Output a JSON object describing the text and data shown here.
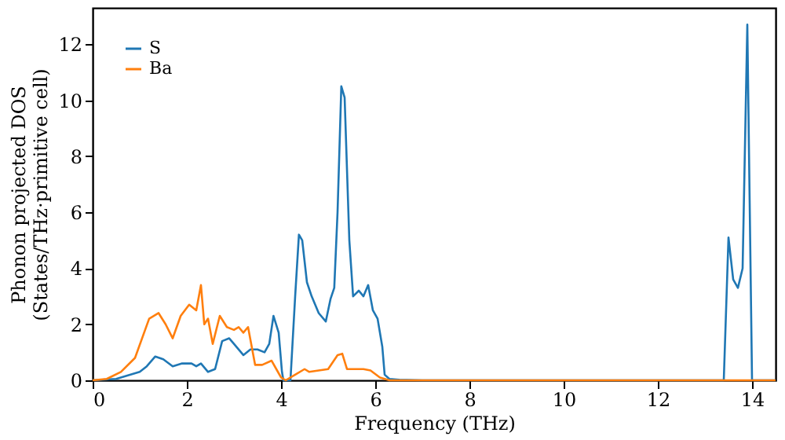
{
  "chart_data": {
    "type": "line",
    "xlabel": "Frequency (THz)",
    "ylabel": "Phonon projected DOS\n(States/THz·primitive cell)",
    "xlim": [
      0,
      14.5
    ],
    "ylim": [
      0,
      13.3
    ],
    "xticks": [
      0,
      2,
      4,
      6,
      8,
      10,
      12,
      14
    ],
    "yticks": [
      0,
      2,
      4,
      6,
      8,
      10,
      12
    ],
    "grid": false,
    "legend": "top left",
    "series": [
      {
        "name": "S",
        "color": "#1f77b4",
        "x": [
          0,
          0.5,
          1.0,
          1.15,
          1.33,
          1.5,
          1.7,
          1.9,
          2.1,
          2.2,
          2.3,
          2.45,
          2.6,
          2.75,
          2.9,
          3.0,
          3.2,
          3.35,
          3.5,
          3.65,
          3.75,
          3.84,
          3.95,
          4.02,
          4.05,
          4.2,
          4.3,
          4.38,
          4.45,
          4.55,
          4.65,
          4.8,
          4.95,
          5.05,
          5.13,
          5.2,
          5.28,
          5.35,
          5.45,
          5.53,
          5.65,
          5.75,
          5.85,
          5.95,
          6.05,
          6.15,
          6.2,
          6.3,
          6.5,
          7,
          13.4,
          13.5,
          13.6,
          13.7,
          13.8,
          13.9,
          14.0,
          14.5
        ],
        "values": [
          0,
          0.05,
          0.3,
          0.5,
          0.85,
          0.75,
          0.5,
          0.6,
          0.6,
          0.5,
          0.6,
          0.3,
          0.4,
          1.4,
          1.5,
          1.3,
          0.9,
          1.1,
          1.1,
          1.0,
          1.3,
          2.3,
          1.7,
          0.3,
          0,
          0,
          3.0,
          5.2,
          5.0,
          3.5,
          3.0,
          2.4,
          2.1,
          2.9,
          3.3,
          6.0,
          10.5,
          10.1,
          5.0,
          3.0,
          3.2,
          3.0,
          3.4,
          2.5,
          2.2,
          1.2,
          0.2,
          0.05,
          0.02,
          0,
          0,
          5.1,
          3.6,
          3.3,
          4.0,
          12.7,
          0,
          0
        ]
      },
      {
        "name": "Ba",
        "color": "#ff7f0e",
        "x": [
          0,
          0.3,
          0.6,
          0.9,
          1.2,
          1.4,
          1.55,
          1.7,
          1.87,
          2.05,
          2.2,
          2.3,
          2.37,
          2.45,
          2.55,
          2.7,
          2.85,
          3.0,
          3.1,
          3.2,
          3.3,
          3.45,
          3.6,
          3.8,
          3.9,
          4.0,
          4.1,
          4.3,
          4.5,
          4.6,
          4.8,
          5.0,
          5.2,
          5.3,
          5.4,
          5.6,
          5.75,
          5.9,
          6.1,
          6.3,
          14.5
        ],
        "values": [
          0,
          0.05,
          0.3,
          0.8,
          2.2,
          2.4,
          2.0,
          1.5,
          2.3,
          2.7,
          2.5,
          3.4,
          2.0,
          2.2,
          1.3,
          2.3,
          1.9,
          1.8,
          1.9,
          1.7,
          1.9,
          0.55,
          0.55,
          0.7,
          0.4,
          0.1,
          0,
          0.2,
          0.4,
          0.3,
          0.35,
          0.4,
          0.9,
          0.95,
          0.4,
          0.4,
          0.4,
          0.35,
          0.1,
          0,
          0
        ]
      }
    ]
  }
}
